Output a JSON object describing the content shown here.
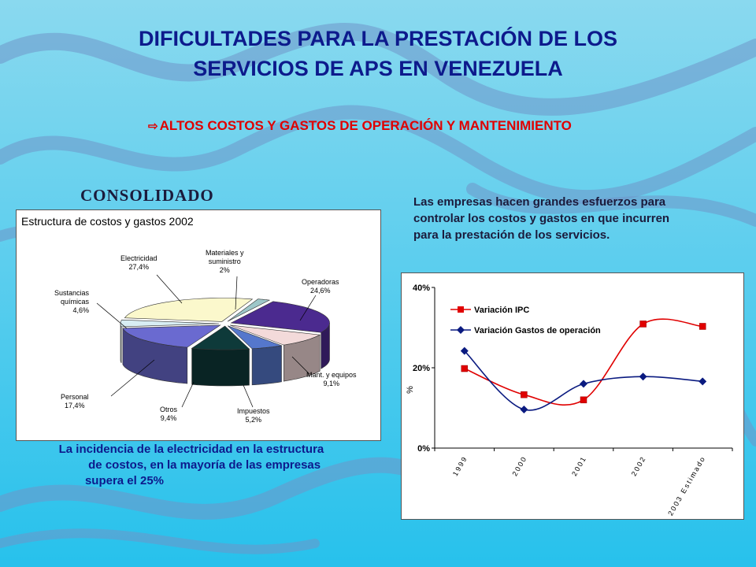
{
  "slide": {
    "title_line1": "DIFICULTADES PARA LA PRESTACIÓN DE LOS",
    "title_line2": "SERVICIOS DE APS EN VENEZUELA",
    "subtitle": "ALTOS COSTOS Y GASTOS DE OPERACIÓN Y MANTENIMIENTO",
    "subtitle_icon": "hollow-arrow-icon",
    "consolidado": "CONSOLIDADO",
    "note_col1": [
      "La incidencia de la",
      "de costos, en",
      "supera el 25%"
    ],
    "note_col2": [
      "electricidad en la estructura",
      "la mayoría de las empresas"
    ],
    "paragraph": "Las empresas hacen grandes esfuerzos para controlar los costos y gastos en que incurren para la prestación de los servicios.",
    "colors": {
      "title": "#0d1a8c",
      "subtitle": "#e00000",
      "background_top": "#7fd6ee",
      "background_bottom": "#2cc3ec"
    }
  },
  "chart_data": [
    {
      "type": "pie",
      "title": "Estructura de costos y gastos 2002",
      "style": "3d-exploded",
      "slices": [
        {
          "label": "Materiales y suministro",
          "value": 2,
          "value_label": "2%",
          "color": "#9dc7c9"
        },
        {
          "label": "Operadoras",
          "value": 24.6,
          "value_label": "24,6%",
          "color": "#4b2a8f"
        },
        {
          "label": "Mant. y equipos",
          "value": 9.1,
          "value_label": "9,1%",
          "color": "#f3dada"
        },
        {
          "label": "Impuestos",
          "value": 5.2,
          "value_label": "5,2%",
          "color": "#5577cc"
        },
        {
          "label": "Otros",
          "value": 9.4,
          "value_label": "9,4%",
          "color": "#0e3a3a"
        },
        {
          "label": "Personal",
          "value": 17.4,
          "value_label": "17,4%",
          "color": "#6a6ad0"
        },
        {
          "label": "Sustancias químicas",
          "value": 4.6,
          "value_label": "4,6%",
          "color": "#d8eef4"
        },
        {
          "label": "Electricidad",
          "value": 27.4,
          "value_label": "27,4%",
          "color": "#fbf8cc"
        }
      ]
    },
    {
      "type": "line",
      "categories": [
        "1999",
        "2000",
        "2001",
        "2002",
        "2003 Estimado"
      ],
      "ylabel": "%",
      "ylim": [
        0,
        40
      ],
      "yticks": [
        "0%",
        "20%",
        "40%"
      ],
      "grid": false,
      "legend_position": "top-left",
      "series": [
        {
          "name": "Variación IPC",
          "values": [
            19.8,
            13.3,
            12.0,
            30.9,
            30.3
          ],
          "color": "#e00000",
          "marker": "square"
        },
        {
          "name": "Variación Gastos de operación",
          "values": [
            24.2,
            9.6,
            16.0,
            17.8,
            16.6
          ],
          "color": "#0a1a80",
          "marker": "diamond"
        }
      ]
    }
  ]
}
